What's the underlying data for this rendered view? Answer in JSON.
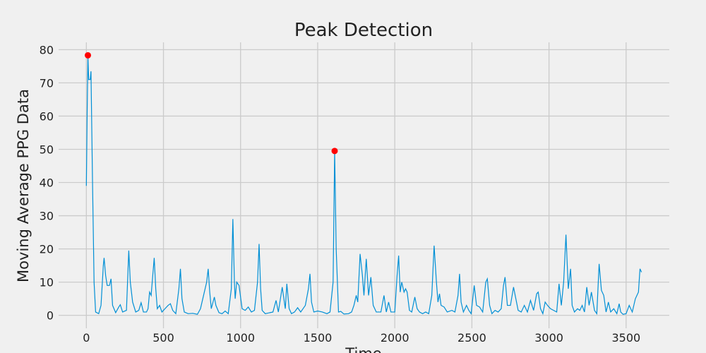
{
  "chart_data": {
    "type": "line",
    "title": "Peak Detection",
    "x_label": "Time",
    "y_label": "Moving Average PPG Data",
    "x": [
      0,
      5,
      10,
      15,
      25,
      30,
      40,
      50,
      60,
      80,
      95,
      110,
      115,
      125,
      135,
      150,
      160,
      170,
      190,
      210,
      220,
      235,
      260,
      275,
      285,
      300,
      320,
      340,
      355,
      370,
      390,
      400,
      410,
      420,
      440,
      450,
      460,
      475,
      490,
      510,
      530,
      545,
      560,
      580,
      600,
      610,
      620,
      635,
      660,
      690,
      720,
      740,
      760,
      780,
      790,
      800,
      810,
      830,
      840,
      860,
      880,
      900,
      920,
      940,
      950,
      960,
      965,
      975,
      990,
      1010,
      1030,
      1050,
      1070,
      1090,
      1110,
      1120,
      1130,
      1140,
      1160,
      1190,
      1210,
      1230,
      1245,
      1270,
      1290,
      1300,
      1315,
      1330,
      1350,
      1370,
      1390,
      1420,
      1440,
      1450,
      1460,
      1475,
      1500,
      1530,
      1560,
      1580,
      1600,
      1610,
      1620,
      1635,
      1650,
      1670,
      1700,
      1720,
      1735,
      1750,
      1760,
      1775,
      1790,
      1800,
      1815,
      1830,
      1845,
      1860,
      1880,
      1910,
      1930,
      1945,
      1960,
      1975,
      2000,
      2015,
      2025,
      2035,
      2045,
      2060,
      2070,
      2080,
      2095,
      2110,
      2130,
      2145,
      2160,
      2180,
      2200,
      2220,
      2240,
      2255,
      2270,
      2280,
      2290,
      2300,
      2320,
      2340,
      2370,
      2390,
      2410,
      2420,
      2430,
      2445,
      2465,
      2480,
      2495,
      2515,
      2530,
      2550,
      2570,
      2590,
      2600,
      2615,
      2630,
      2650,
      2670,
      2690,
      2705,
      2715,
      2730,
      2750,
      2770,
      2785,
      2800,
      2820,
      2840,
      2860,
      2880,
      2900,
      2920,
      2930,
      2945,
      2960,
      2975,
      2990,
      3010,
      3030,
      3050,
      3065,
      3080,
      3095,
      3110,
      3125,
      3140,
      3150,
      3165,
      3185,
      3200,
      3215,
      3230,
      3245,
      3260,
      3275,
      3295,
      3310,
      3325,
      3340,
      3355,
      3370,
      3385,
      3400,
      3420,
      3440,
      3455,
      3465,
      3480,
      3500,
      3520,
      3540,
      3560,
      3580,
      3590,
      3600
    ],
    "values": [
      39,
      60,
      78.3,
      71,
      71,
      73.5,
      40,
      10,
      1,
      0.5,
      3,
      15,
      17.3,
      12,
      9,
      9,
      11,
      3,
      0.8,
      2.5,
      3.2,
      1,
      1.5,
      19.5,
      10,
      4,
      1,
      1.5,
      3.8,
      1,
      1,
      2,
      7,
      6,
      17.3,
      8,
      2,
      3,
      1,
      2,
      3,
      3.5,
      1.5,
      0.5,
      8,
      14,
      5,
      1,
      0.5,
      0.6,
      0.3,
      2,
      6,
      10,
      14,
      7,
      2,
      5.5,
      3,
      0.8,
      0.5,
      1.3,
      0.5,
      8,
      29,
      10,
      5,
      10,
      9,
      2,
      1.5,
      2.5,
      1,
      1.5,
      10,
      21.5,
      8,
      1.5,
      0.5,
      0.8,
      1,
      4.5,
      1,
      8.5,
      2,
      9.5,
      2,
      0.5,
      1,
      2.3,
      1,
      3,
      8,
      12.5,
      4,
      1,
      1.3,
      1,
      0.5,
      1,
      10,
      49.5,
      20,
      1,
      1.2,
      0.4,
      0.5,
      1,
      3,
      6,
      4,
      18.5,
      12,
      6,
      17,
      6,
      11.5,
      3,
      1,
      1,
      6,
      1,
      4,
      1,
      1,
      12,
      18,
      7,
      10,
      7,
      8,
      7,
      1.5,
      1,
      5.5,
      2,
      1,
      0.5,
      1,
      0.5,
      6,
      21,
      10,
      4,
      6.5,
      3,
      2.5,
      1,
      1.5,
      1,
      6,
      12.5,
      4,
      1,
      3,
      1.5,
      0.5,
      9,
      3,
      2.5,
      1,
      10,
      11,
      3,
      0.5,
      1.5,
      1,
      2,
      9,
      11.5,
      3,
      3,
      8.5,
      5,
      1.5,
      1,
      3,
      1,
      4.5,
      1.5,
      6.5,
      7,
      2,
      0.5,
      4,
      3,
      2,
      1.5,
      1,
      9.5,
      3,
      10,
      24.3,
      8,
      14,
      3,
      1,
      2,
      1.5,
      3,
      1,
      8.5,
      3,
      7,
      1.5,
      0.5,
      15.5,
      7.5,
      6,
      1,
      4,
      1,
      2,
      0.5,
      3.5,
      1,
      0.3,
      0.5,
      3,
      1,
      5,
      7,
      14,
      13
    ],
    "color": "#008fd5",
    "peaks": {
      "x": [
        10,
        1610
      ],
      "values": [
        78.3,
        49.5
      ],
      "color": "#ff0000"
    },
    "xlim": [
      -180,
      3780
    ],
    "ylim": [
      -3.9,
      82.2
    ],
    "xticks": [
      0,
      500,
      1000,
      1500,
      2000,
      2500,
      3000,
      3500
    ],
    "yticks": [
      0,
      10,
      20,
      30,
      40,
      50,
      60,
      70,
      80
    ],
    "grid": true
  }
}
